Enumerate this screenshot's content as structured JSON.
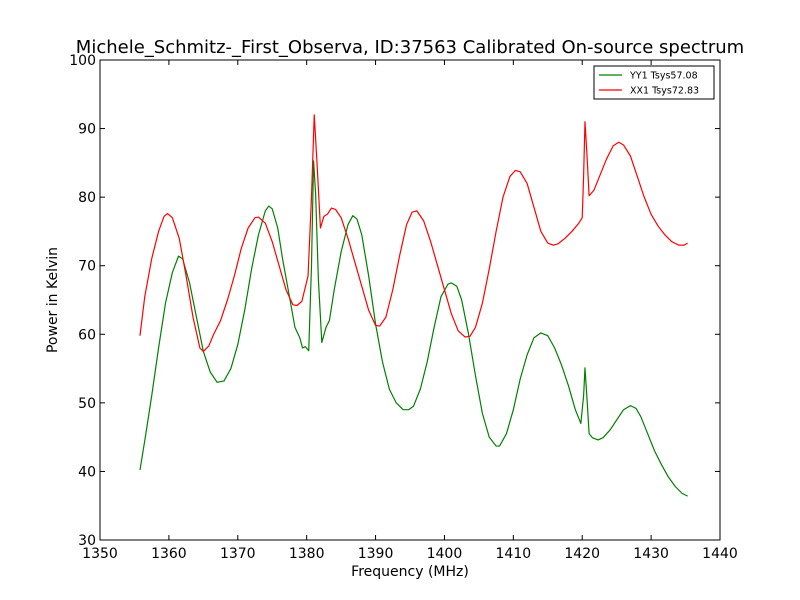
{
  "chart_data": {
    "type": "line",
    "title": "Michele_Schmitz-_First_Observa, ID:37563 Calibrated On-source spectrum",
    "xlabel": "Frequency (MHz)",
    "ylabel": "Power in Kelvin",
    "xlim": [
      1350,
      1440
    ],
    "ylim": [
      30,
      100
    ],
    "xticks": [
      1350,
      1360,
      1370,
      1380,
      1390,
      1400,
      1410,
      1420,
      1430,
      1440
    ],
    "yticks": [
      30,
      40,
      50,
      60,
      70,
      80,
      90,
      100
    ],
    "grid": false,
    "legend_position": "top-right",
    "series": [
      {
        "name": "YY1 Tsys57.08",
        "color": "#008000",
        "points": [
          [
            1355.8,
            40.2
          ],
          [
            1356.5,
            44.5
          ],
          [
            1357.5,
            51.0
          ],
          [
            1358.5,
            58.0
          ],
          [
            1359.5,
            64.5
          ],
          [
            1360.5,
            69.0
          ],
          [
            1361.4,
            71.4
          ],
          [
            1362.0,
            71.0
          ],
          [
            1363.0,
            67.5
          ],
          [
            1364.0,
            62.5
          ],
          [
            1365.0,
            57.5
          ],
          [
            1366.0,
            54.5
          ],
          [
            1367.0,
            53.0
          ],
          [
            1368.0,
            53.2
          ],
          [
            1369.0,
            55.0
          ],
          [
            1370.0,
            58.5
          ],
          [
            1371.0,
            63.5
          ],
          [
            1372.0,
            69.5
          ],
          [
            1373.0,
            74.5
          ],
          [
            1374.0,
            78.0
          ],
          [
            1374.5,
            78.7
          ],
          [
            1375.0,
            78.3
          ],
          [
            1375.8,
            75.5
          ],
          [
            1376.5,
            71.0
          ],
          [
            1377.5,
            65.5
          ],
          [
            1378.3,
            61.0
          ],
          [
            1379.0,
            59.5
          ],
          [
            1379.4,
            58.0
          ],
          [
            1379.8,
            58.2
          ],
          [
            1380.3,
            57.6
          ],
          [
            1380.7,
            70.0
          ],
          [
            1381.0,
            85.3
          ],
          [
            1381.3,
            80.5
          ],
          [
            1381.7,
            68.0
          ],
          [
            1382.2,
            58.8
          ],
          [
            1382.8,
            61.0
          ],
          [
            1383.3,
            62.0
          ],
          [
            1384.0,
            66.5
          ],
          [
            1385.0,
            72.0
          ],
          [
            1386.0,
            76.0
          ],
          [
            1386.7,
            77.3
          ],
          [
            1387.3,
            76.8
          ],
          [
            1388.0,
            74.5
          ],
          [
            1389.0,
            68.5
          ],
          [
            1390.0,
            61.5
          ],
          [
            1391.0,
            56.0
          ],
          [
            1392.0,
            52.0
          ],
          [
            1393.0,
            50.0
          ],
          [
            1394.0,
            49.0
          ],
          [
            1394.8,
            49.0
          ],
          [
            1395.5,
            49.5
          ],
          [
            1396.5,
            52.0
          ],
          [
            1397.5,
            56.0
          ],
          [
            1398.5,
            61.0
          ],
          [
            1399.5,
            65.5
          ],
          [
            1400.5,
            67.3
          ],
          [
            1401.0,
            67.5
          ],
          [
            1401.8,
            67.0
          ],
          [
            1402.5,
            65.0
          ],
          [
            1403.5,
            60.0
          ],
          [
            1404.5,
            54.0
          ],
          [
            1405.5,
            48.5
          ],
          [
            1406.5,
            45.0
          ],
          [
            1407.5,
            43.7
          ],
          [
            1408.0,
            43.7
          ],
          [
            1409.0,
            45.5
          ],
          [
            1410.0,
            49.0
          ],
          [
            1411.0,
            53.5
          ],
          [
            1412.0,
            57.0
          ],
          [
            1413.0,
            59.5
          ],
          [
            1414.0,
            60.2
          ],
          [
            1415.0,
            59.8
          ],
          [
            1416.0,
            58.0
          ],
          [
            1417.0,
            55.5
          ],
          [
            1418.0,
            52.5
          ],
          [
            1419.0,
            49.0
          ],
          [
            1419.8,
            47.0
          ],
          [
            1420.2,
            51.0
          ],
          [
            1420.4,
            55.1
          ],
          [
            1420.7,
            50.5
          ],
          [
            1421.0,
            45.5
          ],
          [
            1421.5,
            44.9
          ],
          [
            1422.3,
            44.6
          ],
          [
            1423.0,
            44.9
          ],
          [
            1424.0,
            46.0
          ],
          [
            1425.0,
            47.5
          ],
          [
            1426.0,
            49.0
          ],
          [
            1427.0,
            49.6
          ],
          [
            1427.8,
            49.2
          ],
          [
            1428.5,
            48.0
          ],
          [
            1429.5,
            45.5
          ],
          [
            1430.5,
            43.0
          ],
          [
            1431.5,
            41.0
          ],
          [
            1432.5,
            39.2
          ],
          [
            1433.5,
            37.8
          ],
          [
            1434.5,
            36.8
          ],
          [
            1435.3,
            36.4
          ]
        ]
      },
      {
        "name": "XX1 Tsys72.83",
        "color": "#ff0000",
        "points": [
          [
            1355.8,
            59.8
          ],
          [
            1356.5,
            65.5
          ],
          [
            1357.5,
            71.0
          ],
          [
            1358.5,
            75.0
          ],
          [
            1359.3,
            77.2
          ],
          [
            1359.8,
            77.6
          ],
          [
            1360.5,
            77.0
          ],
          [
            1361.5,
            74.0
          ],
          [
            1362.5,
            68.5
          ],
          [
            1363.5,
            62.5
          ],
          [
            1364.5,
            58.0
          ],
          [
            1365.0,
            57.5
          ],
          [
            1365.8,
            58.3
          ],
          [
            1366.5,
            60.0
          ],
          [
            1367.5,
            62.0
          ],
          [
            1368.5,
            65.0
          ],
          [
            1369.5,
            68.5
          ],
          [
            1370.5,
            72.5
          ],
          [
            1371.5,
            75.5
          ],
          [
            1372.5,
            77.0
          ],
          [
            1373.0,
            77.1
          ],
          [
            1374.0,
            76.2
          ],
          [
            1375.0,
            73.5
          ],
          [
            1376.0,
            70.0
          ],
          [
            1377.0,
            66.5
          ],
          [
            1378.0,
            64.3
          ],
          [
            1378.6,
            64.2
          ],
          [
            1379.3,
            64.8
          ],
          [
            1380.2,
            68.5
          ],
          [
            1380.7,
            80.0
          ],
          [
            1381.1,
            92.0
          ],
          [
            1381.5,
            85.0
          ],
          [
            1382.0,
            75.5
          ],
          [
            1382.5,
            77.2
          ],
          [
            1383.0,
            77.5
          ],
          [
            1383.6,
            78.4
          ],
          [
            1384.2,
            78.2
          ],
          [
            1385.0,
            77.0
          ],
          [
            1386.0,
            74.0
          ],
          [
            1387.0,
            70.5
          ],
          [
            1388.0,
            67.0
          ],
          [
            1389.0,
            63.5
          ],
          [
            1390.0,
            61.3
          ],
          [
            1390.6,
            61.2
          ],
          [
            1391.5,
            62.5
          ],
          [
            1392.5,
            66.5
          ],
          [
            1393.5,
            71.5
          ],
          [
            1394.5,
            76.0
          ],
          [
            1395.3,
            77.8
          ],
          [
            1396.0,
            78.0
          ],
          [
            1397.0,
            76.5
          ],
          [
            1398.0,
            73.5
          ],
          [
            1399.0,
            70.0
          ],
          [
            1400.0,
            66.5
          ],
          [
            1401.0,
            63.0
          ],
          [
            1402.0,
            60.5
          ],
          [
            1403.0,
            59.6
          ],
          [
            1403.7,
            59.7
          ],
          [
            1404.5,
            61.0
          ],
          [
            1405.5,
            64.5
          ],
          [
            1406.5,
            69.5
          ],
          [
            1407.5,
            75.0
          ],
          [
            1408.5,
            80.0
          ],
          [
            1409.5,
            83.0
          ],
          [
            1410.3,
            83.9
          ],
          [
            1411.0,
            83.7
          ],
          [
            1412.0,
            82.0
          ],
          [
            1413.0,
            78.5
          ],
          [
            1414.0,
            75.0
          ],
          [
            1415.0,
            73.3
          ],
          [
            1415.8,
            73.0
          ],
          [
            1416.5,
            73.2
          ],
          [
            1417.5,
            74.0
          ],
          [
            1418.5,
            75.0
          ],
          [
            1419.5,
            76.2
          ],
          [
            1420.0,
            77.0
          ],
          [
            1420.2,
            83.0
          ],
          [
            1420.4,
            91.0
          ],
          [
            1420.7,
            86.0
          ],
          [
            1421.0,
            80.2
          ],
          [
            1421.7,
            81.0
          ],
          [
            1422.5,
            83.0
          ],
          [
            1423.5,
            85.5
          ],
          [
            1424.5,
            87.5
          ],
          [
            1425.3,
            88.0
          ],
          [
            1426.0,
            87.6
          ],
          [
            1427.0,
            86.0
          ],
          [
            1428.0,
            83.0
          ],
          [
            1429.0,
            80.0
          ],
          [
            1430.0,
            77.5
          ],
          [
            1431.0,
            75.8
          ],
          [
            1432.0,
            74.5
          ],
          [
            1433.0,
            73.5
          ],
          [
            1434.0,
            73.0
          ],
          [
            1434.8,
            73.0
          ],
          [
            1435.3,
            73.3
          ]
        ]
      }
    ]
  }
}
